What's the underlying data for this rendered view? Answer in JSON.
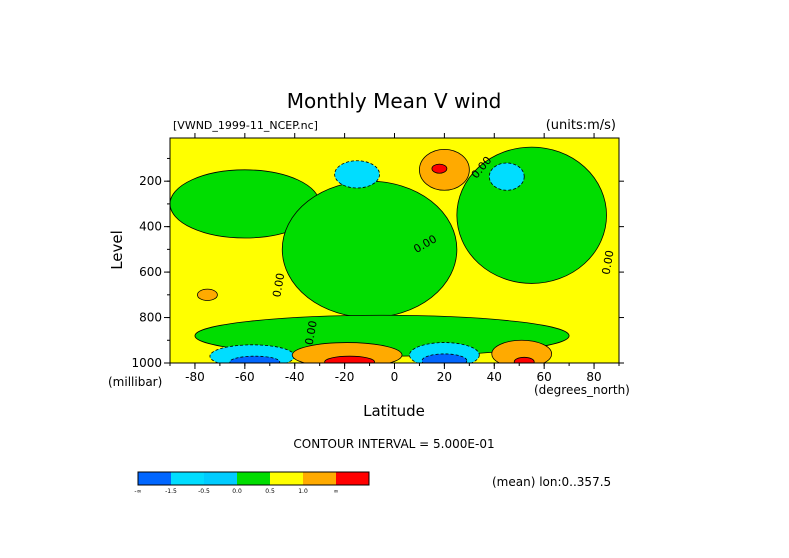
{
  "chart_data": {
    "type": "heatmap",
    "title": "Monthly Mean V wind",
    "file_label": "[VWND_1999-11_NCEP.nc]",
    "units_label": "(units:m/s)",
    "xlabel": "Latitude",
    "ylabel": "Level",
    "x_unit_label": "(degrees_north)",
    "y_unit_label": "(millibar)",
    "xlim": [
      -90,
      90
    ],
    "ylim": [
      1000,
      10
    ],
    "x_ticks": [
      -80,
      -60,
      -40,
      -20,
      0,
      20,
      40,
      60,
      80
    ],
    "x_tick_labels": [
      "-80",
      "-60",
      "-40",
      "-20",
      "0",
      "20",
      "40",
      "60",
      "80"
    ],
    "y_ticks": [
      200,
      400,
      600,
      800,
      1000
    ],
    "y_tick_labels": [
      "200",
      "400",
      "600",
      "800",
      "1000"
    ],
    "contour_labels": [
      {
        "text": "0.00",
        "lat": -45,
        "level": 660,
        "rotate": -80
      },
      {
        "text": "0.00",
        "lat": -32,
        "level": 870,
        "rotate": -80
      },
      {
        "text": "0.00",
        "lat": 13,
        "level": 490,
        "rotate": -30
      },
      {
        "text": "0.00",
        "lat": 36,
        "level": 150,
        "rotate": -50
      },
      {
        "text": "0.00",
        "lat": 87,
        "level": 560,
        "rotate": -80
      }
    ],
    "contour_interval_label": "CONTOUR INTERVAL = 5.000E-01",
    "mean_label": "(mean) lon:0..357.5",
    "colorbar": {
      "colors": [
        "#0066ff",
        "#00ddff",
        "#00ccff",
        "#00dd00",
        "#ffff00",
        "#ffaa00",
        "#ff0000"
      ],
      "labels": [
        "-∞",
        "-1.5",
        "-0.5",
        "0.0",
        "0.5",
        "1.0",
        "∞"
      ]
    },
    "fields": {
      "green_regions": [
        {
          "name": "band-sh-mid",
          "cx": -60,
          "cy": 300,
          "rx": 30,
          "ry": 150
        },
        {
          "name": "center-upper",
          "cx": -10,
          "cy": 500,
          "rx": 35,
          "ry": 300
        },
        {
          "name": "nh-mid",
          "cx": 55,
          "cy": 350,
          "rx": 30,
          "ry": 300
        },
        {
          "name": "lower-band",
          "cx": -5,
          "cy": 880,
          "rx": 75,
          "ry": 90
        }
      ],
      "cyan_regions": [
        {
          "name": "cyan-a",
          "cx": -15,
          "cy": 170,
          "rx": 9,
          "ry": 60
        },
        {
          "name": "cyan-b",
          "cx": 45,
          "cy": 180,
          "rx": 7,
          "ry": 60
        },
        {
          "name": "cyan-c",
          "cx": -57,
          "cy": 970,
          "rx": 17,
          "ry": 50
        },
        {
          "name": "cyan-d",
          "cx": 20,
          "cy": 965,
          "rx": 14,
          "ry": 55
        }
      ],
      "blue_regions": [
        {
          "name": "blue-a",
          "cx": -56,
          "cy": 995,
          "rx": 10,
          "ry": 25
        },
        {
          "name": "blue-b",
          "cx": 20,
          "cy": 990,
          "rx": 9,
          "ry": 30
        }
      ],
      "orange_regions": [
        {
          "name": "orange-a",
          "cx": 20,
          "cy": 150,
          "rx": 10,
          "ry": 90
        },
        {
          "name": "orange-b",
          "cx": -19,
          "cy": 965,
          "rx": 22,
          "ry": 55
        },
        {
          "name": "orange-c",
          "cx": 51,
          "cy": 960,
          "rx": 12,
          "ry": 60
        },
        {
          "name": "orange-d",
          "cx": -75,
          "cy": 700,
          "rx": 4,
          "ry": 25
        }
      ],
      "red_regions": [
        {
          "name": "red-a",
          "cx": 18,
          "cy": 145,
          "rx": 3,
          "ry": 20
        },
        {
          "name": "red-b",
          "cx": -18,
          "cy": 995,
          "rx": 10,
          "ry": 25
        },
        {
          "name": "red-c",
          "cx": 52,
          "cy": 995,
          "rx": 4,
          "ry": 20
        }
      ]
    }
  }
}
